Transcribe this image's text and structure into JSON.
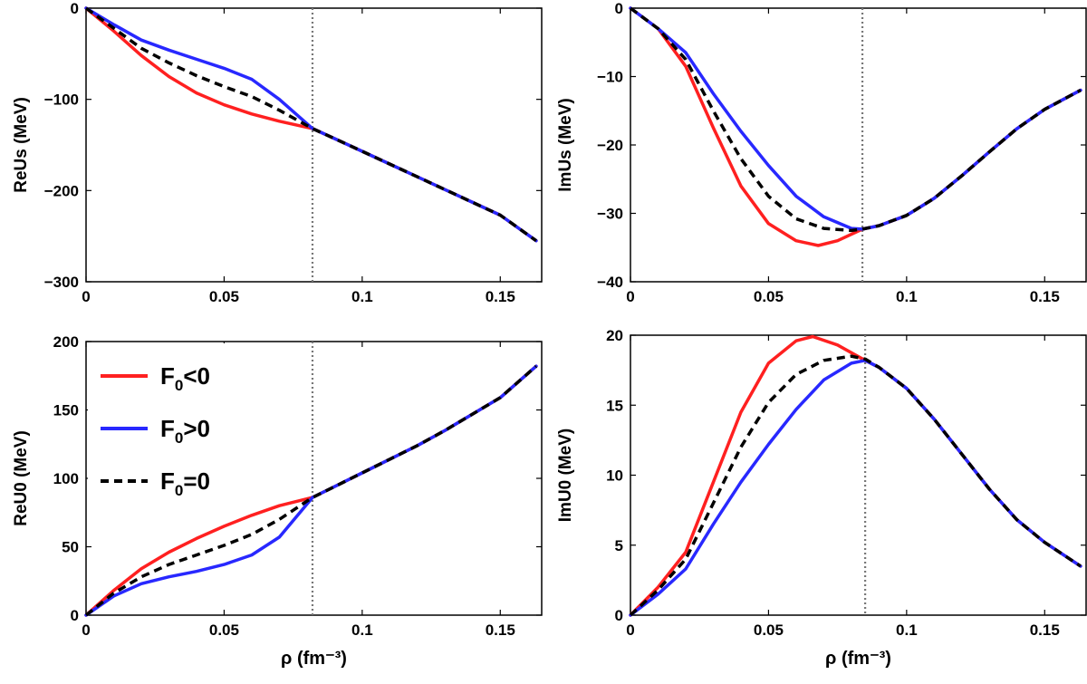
{
  "chart_data": [
    {
      "type": "line",
      "panel": "top-left",
      "ylabel": "ReUs (MeV)",
      "xlabel": "",
      "xlim": [
        0,
        0.165
      ],
      "ylim": [
        -300,
        0
      ],
      "xticks": [
        0,
        0.05,
        0.1,
        0.15
      ],
      "xtick_labels": [
        "0",
        "0.05",
        "0.1",
        "0.15"
      ],
      "yticks": [
        0,
        -100,
        -200,
        -300
      ],
      "ytick_labels": [
        "0",
        "−100",
        "−200",
        "−300"
      ],
      "vline": 0.082,
      "series": [
        {
          "name": "F0<0",
          "color": "#ff2020",
          "dash": false,
          "x": [
            0,
            0.01,
            0.02,
            0.03,
            0.04,
            0.05,
            0.06,
            0.07,
            0.082,
            0.09,
            0.1,
            0.11,
            0.12,
            0.13,
            0.14,
            0.15,
            0.163
          ],
          "y": [
            0,
            -25,
            -52,
            -75,
            -93,
            -106,
            -116,
            -124,
            -132,
            -143,
            -157,
            -171,
            -185,
            -199,
            -213,
            -227,
            -255
          ]
        },
        {
          "name": "F0>0",
          "color": "#2828ff",
          "dash": false,
          "x": [
            0,
            0.01,
            0.02,
            0.03,
            0.04,
            0.05,
            0.06,
            0.07,
            0.082,
            0.09,
            0.1,
            0.11,
            0.12,
            0.13,
            0.14,
            0.15,
            0.163
          ],
          "y": [
            0,
            -18,
            -35,
            -46,
            -56,
            -66,
            -78,
            -100,
            -132,
            -143,
            -157,
            -171,
            -185,
            -199,
            -213,
            -227,
            -255
          ]
        },
        {
          "name": "F0=0",
          "color": "#000000",
          "dash": true,
          "x": [
            0,
            0.01,
            0.02,
            0.03,
            0.04,
            0.05,
            0.06,
            0.07,
            0.082,
            0.09,
            0.1,
            0.11,
            0.12,
            0.13,
            0.14,
            0.15,
            0.163
          ],
          "y": [
            0,
            -22,
            -44,
            -60,
            -74,
            -86,
            -97,
            -112,
            -132,
            -143,
            -157,
            -171,
            -185,
            -199,
            -213,
            -227,
            -255
          ]
        }
      ]
    },
    {
      "type": "line",
      "panel": "top-right",
      "ylabel": "ImUs (MeV)",
      "xlabel": "",
      "xlim": [
        0,
        0.165
      ],
      "ylim": [
        -40,
        0
      ],
      "xticks": [
        0,
        0.05,
        0.1,
        0.15
      ],
      "xtick_labels": [
        "0",
        "0.05",
        "0.1",
        "0.15"
      ],
      "yticks": [
        0,
        -10,
        -20,
        -30,
        -40
      ],
      "ytick_labels": [
        "0",
        "−10",
        "−20",
        "−30",
        "−40"
      ],
      "vline": 0.084,
      "series": [
        {
          "name": "F0<0",
          "color": "#ff2020",
          "dash": false,
          "x": [
            0,
            0.01,
            0.02,
            0.03,
            0.04,
            0.05,
            0.06,
            0.068,
            0.075,
            0.084,
            0.09,
            0.1,
            0.11,
            0.12,
            0.13,
            0.14,
            0.15,
            0.163
          ],
          "y": [
            0,
            -3,
            -8.5,
            -17.5,
            -26,
            -31.5,
            -34,
            -34.7,
            -34,
            -32.3,
            -31.8,
            -30.3,
            -27.8,
            -24.5,
            -21,
            -17.6,
            -14.8,
            -12
          ]
        },
        {
          "name": "F0>0",
          "color": "#2828ff",
          "dash": false,
          "x": [
            0,
            0.01,
            0.02,
            0.03,
            0.04,
            0.05,
            0.06,
            0.07,
            0.08,
            0.084,
            0.09,
            0.1,
            0.11,
            0.12,
            0.13,
            0.14,
            0.15,
            0.163
          ],
          "y": [
            0,
            -3,
            -6.5,
            -12.5,
            -18,
            -23,
            -27.5,
            -30.5,
            -32.2,
            -32.3,
            -31.8,
            -30.3,
            -27.8,
            -24.5,
            -21,
            -17.6,
            -14.8,
            -12
          ]
        },
        {
          "name": "F0=0",
          "color": "#000000",
          "dash": true,
          "x": [
            0,
            0.01,
            0.02,
            0.03,
            0.04,
            0.05,
            0.06,
            0.07,
            0.08,
            0.084,
            0.09,
            0.1,
            0.11,
            0.12,
            0.13,
            0.14,
            0.15,
            0.163
          ],
          "y": [
            0,
            -3,
            -7.5,
            -15,
            -22,
            -27.5,
            -30.8,
            -32.2,
            -32.5,
            -32.3,
            -31.8,
            -30.3,
            -27.8,
            -24.5,
            -21,
            -17.6,
            -14.8,
            -12
          ]
        }
      ]
    },
    {
      "type": "line",
      "panel": "bottom-left",
      "ylabel": "ReU0 (MeV)",
      "xlabel": "ρ (fm⁻³)",
      "xlim": [
        0,
        0.165
      ],
      "ylim": [
        0,
        200
      ],
      "xticks": [
        0,
        0.05,
        0.1,
        0.15
      ],
      "xtick_labels": [
        "0",
        "0.05",
        "0.1",
        "0.15"
      ],
      "yticks": [
        0,
        50,
        100,
        150,
        200
      ],
      "ytick_labels": [
        "0",
        "50",
        "100",
        "150",
        "200"
      ],
      "vline": 0.082,
      "series": [
        {
          "name": "F0<0",
          "color": "#ff2020",
          "dash": false,
          "x": [
            0,
            0.01,
            0.02,
            0.03,
            0.04,
            0.05,
            0.06,
            0.07,
            0.082,
            0.09,
            0.1,
            0.11,
            0.12,
            0.13,
            0.14,
            0.15,
            0.163
          ],
          "y": [
            0,
            18,
            34,
            46,
            56,
            65,
            73,
            80,
            86,
            94,
            104,
            114,
            124,
            135,
            147,
            159,
            182
          ]
        },
        {
          "name": "F0>0",
          "color": "#2828ff",
          "dash": false,
          "x": [
            0,
            0.01,
            0.02,
            0.03,
            0.04,
            0.05,
            0.06,
            0.07,
            0.082,
            0.09,
            0.1,
            0.11,
            0.12,
            0.13,
            0.14,
            0.15,
            0.163
          ],
          "y": [
            0,
            14,
            23,
            28,
            32,
            37,
            44,
            57,
            86,
            94,
            104,
            114,
            124,
            135,
            147,
            159,
            182
          ]
        },
        {
          "name": "F0=0",
          "color": "#000000",
          "dash": true,
          "x": [
            0,
            0.01,
            0.02,
            0.03,
            0.04,
            0.05,
            0.06,
            0.07,
            0.082,
            0.09,
            0.1,
            0.11,
            0.12,
            0.13,
            0.14,
            0.15,
            0.163
          ],
          "y": [
            0,
            16,
            28,
            37,
            44,
            51,
            59,
            70,
            86,
            94,
            104,
            114,
            124,
            135,
            147,
            159,
            182
          ]
        }
      ]
    },
    {
      "type": "line",
      "panel": "bottom-right",
      "ylabel": "ImU0 (MeV)",
      "xlabel": "ρ (fm⁻³)",
      "xlim": [
        0,
        0.165
      ],
      "ylim": [
        0,
        20
      ],
      "xticks": [
        0,
        0.05,
        0.1,
        0.15
      ],
      "xtick_labels": [
        "0",
        "0.05",
        "0.1",
        "0.15"
      ],
      "yticks": [
        0,
        5,
        10,
        15,
        20
      ],
      "ytick_labels": [
        "0",
        "5",
        "10",
        "15",
        "20"
      ],
      "vline": 0.085,
      "series": [
        {
          "name": "F0<0",
          "color": "#ff2020",
          "dash": false,
          "x": [
            0,
            0.01,
            0.02,
            0.03,
            0.04,
            0.05,
            0.06,
            0.066,
            0.075,
            0.085,
            0.09,
            0.1,
            0.11,
            0.12,
            0.13,
            0.14,
            0.15,
            0.163
          ],
          "y": [
            0,
            2,
            4.5,
            9.5,
            14.5,
            18,
            19.6,
            19.9,
            19.3,
            18.2,
            17.7,
            16.2,
            14,
            11.5,
            9,
            6.8,
            5.2,
            3.5
          ]
        },
        {
          "name": "F0>0",
          "color": "#2828ff",
          "dash": false,
          "x": [
            0,
            0.01,
            0.02,
            0.03,
            0.04,
            0.05,
            0.06,
            0.07,
            0.08,
            0.085,
            0.09,
            0.1,
            0.11,
            0.12,
            0.13,
            0.14,
            0.15,
            0.163
          ],
          "y": [
            0,
            1.5,
            3.3,
            6.5,
            9.5,
            12.2,
            14.7,
            16.8,
            18,
            18.2,
            17.7,
            16.2,
            14,
            11.5,
            9,
            6.8,
            5.2,
            3.5
          ]
        },
        {
          "name": "F0=0",
          "color": "#000000",
          "dash": true,
          "x": [
            0,
            0.01,
            0.02,
            0.03,
            0.04,
            0.05,
            0.06,
            0.07,
            0.08,
            0.085,
            0.09,
            0.1,
            0.11,
            0.12,
            0.13,
            0.14,
            0.15,
            0.163
          ],
          "y": [
            0,
            1.8,
            4,
            8,
            12,
            15.2,
            17.2,
            18.2,
            18.5,
            18.3,
            17.7,
            16.2,
            14,
            11.5,
            9,
            6.8,
            5.2,
            3.5
          ]
        }
      ]
    }
  ],
  "legend": {
    "location": "top-left of bottom-left panel",
    "entries": [
      {
        "sub": "0",
        "pre": "F",
        "post": "<0",
        "color": "#ff2020",
        "dash": false
      },
      {
        "sub": "0",
        "pre": "F",
        "post": ">0",
        "color": "#2828ff",
        "dash": false
      },
      {
        "sub": "0",
        "pre": "F",
        "post": "=0",
        "color": "#000000",
        "dash": true
      }
    ]
  }
}
